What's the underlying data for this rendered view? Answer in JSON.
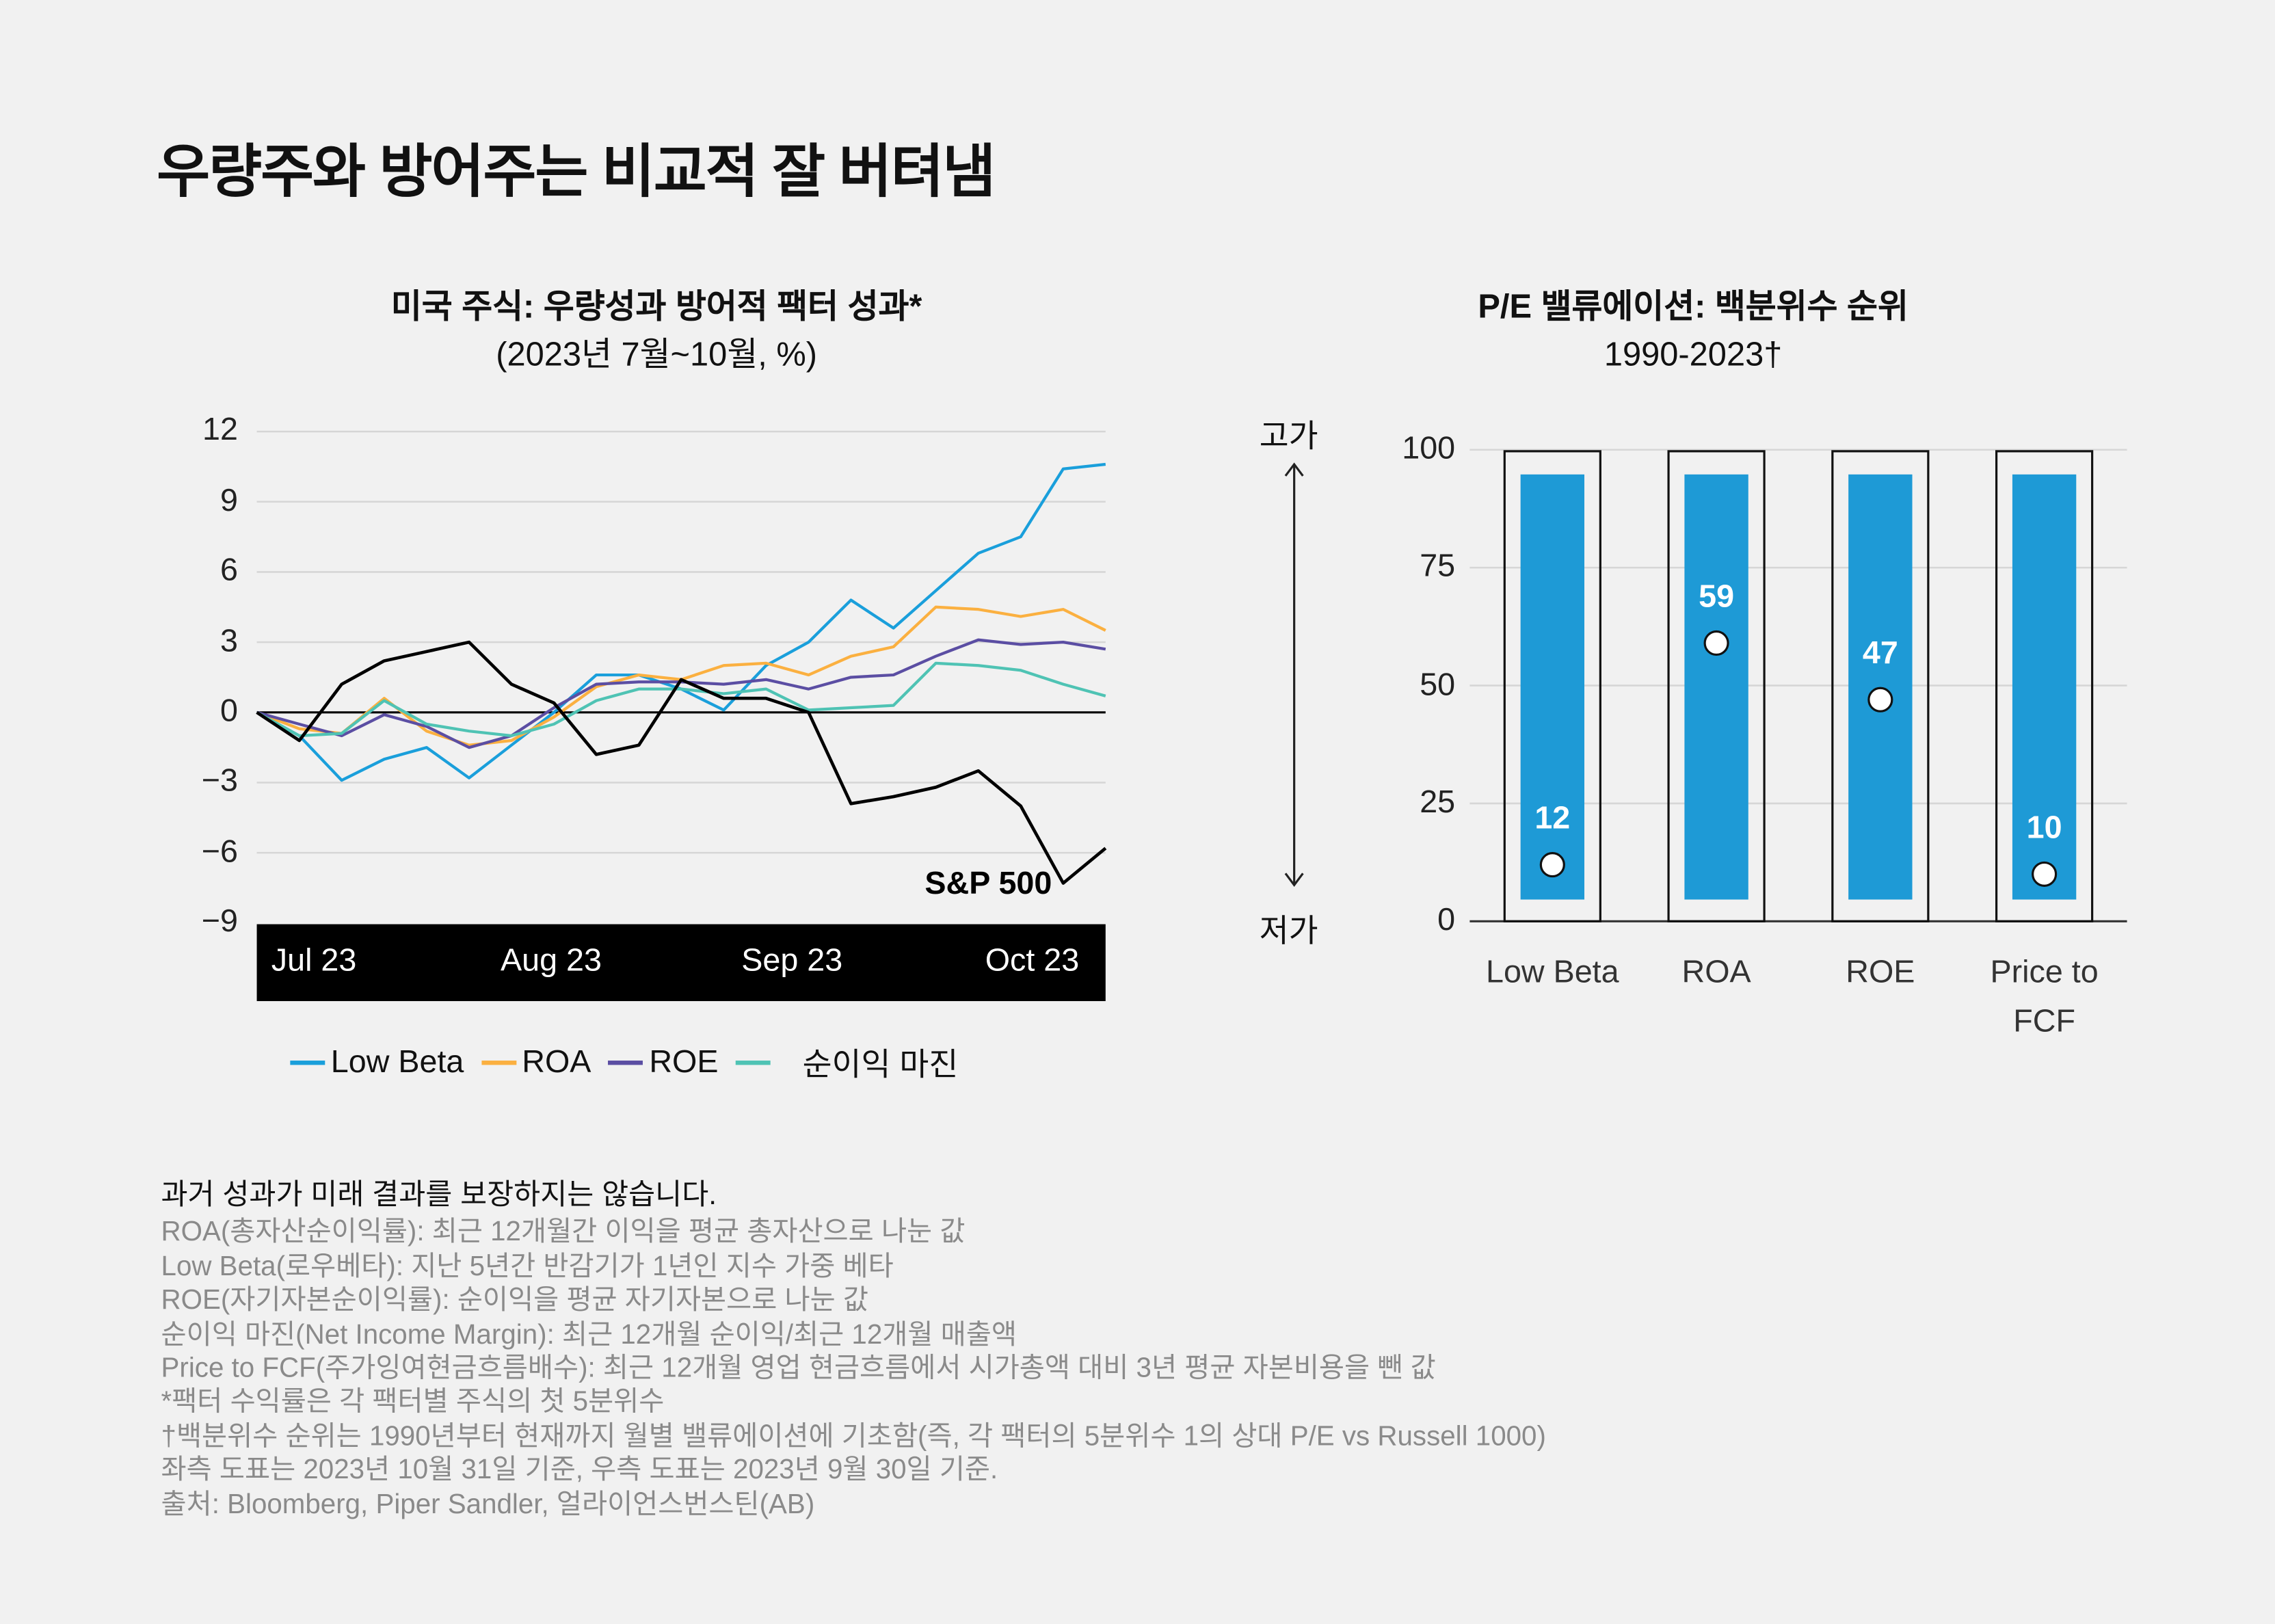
{
  "title": "우량주와 방어주는 비교적 잘 버텨냄",
  "colors": {
    "low_beta": "#1a9fdb",
    "roa": "#fbb040",
    "roe": "#5b4ea3",
    "net_margin": "#4fc3b4",
    "sp500": "#000000",
    "bar": "#1e9ad6"
  },
  "chart_data": [
    {
      "type": "line",
      "title": "미국 주식: 우량성과 방어적 팩터 성과*",
      "subtitle": "(2023년 7월~10월, %)",
      "xlabel": "",
      "ylabel": "",
      "ylim": [
        -9,
        12
      ],
      "yticks": [
        "12",
        "9",
        "6",
        "3",
        "0",
        "−3",
        "−6",
        "−9"
      ],
      "xticks": [
        "Jul 23",
        "Aug 23",
        "Sep 23",
        "Oct 23"
      ],
      "grid": true,
      "legend_placement": "bottom",
      "x": [
        "2023-07-03",
        "2023-07-09",
        "2023-07-15",
        "2023-07-21",
        "2023-07-27",
        "2023-08-02",
        "2023-08-08",
        "2023-08-14",
        "2023-08-20",
        "2023-08-26",
        "2023-09-01",
        "2023-09-07",
        "2023-09-13",
        "2023-09-19",
        "2023-09-25",
        "2023-10-01",
        "2023-10-07",
        "2023-10-13",
        "2023-10-19",
        "2023-10-25",
        "2023-10-31"
      ],
      "series": [
        {
          "name": "Low Beta",
          "key": "low_beta",
          "values": [
            0,
            -1.0,
            -2.9,
            -2.0,
            -1.5,
            -2.8,
            -1.4,
            0,
            1.6,
            1.6,
            1.0,
            0.1,
            2.0,
            3.0,
            4.8,
            3.6,
            5.2,
            6.8,
            7.5,
            10.4,
            10.6
          ]
        },
        {
          "name": "ROA",
          "key": "roa",
          "values": [
            0,
            -0.7,
            -0.9,
            0.6,
            -0.8,
            -1.4,
            -1.2,
            -0.2,
            1.1,
            1.6,
            1.4,
            2.0,
            2.1,
            1.6,
            2.4,
            2.8,
            4.5,
            4.4,
            4.1,
            4.4,
            3.5
          ]
        },
        {
          "name": "ROE",
          "key": "roe",
          "values": [
            0,
            -0.5,
            -1.0,
            -0.1,
            -0.6,
            -1.5,
            -1.0,
            0.2,
            1.2,
            1.3,
            1.3,
            1.2,
            1.4,
            1.0,
            1.5,
            1.6,
            2.4,
            3.1,
            2.9,
            3.0,
            2.7
          ]
        },
        {
          "name": "순이익 마진",
          "key": "net_margin",
          "values": [
            0,
            -1.0,
            -0.9,
            0.5,
            -0.5,
            -0.8,
            -1.0,
            -0.5,
            0.5,
            1.0,
            1.0,
            0.8,
            1.0,
            0.1,
            0.2,
            0.3,
            2.1,
            2.0,
            1.8,
            1.2,
            0.7
          ]
        },
        {
          "name": "S&P 500",
          "key": "sp500",
          "values": [
            0,
            -1.2,
            1.2,
            2.2,
            2.6,
            3.0,
            1.2,
            0.4,
            -1.8,
            -1.4,
            1.4,
            0.6,
            0.6,
            0,
            -3.9,
            -3.6,
            -3.2,
            -2.5,
            -4.0,
            -7.3,
            -5.8
          ]
        }
      ]
    },
    {
      "type": "bar",
      "title": "P/E 밸류에이션: 백분위수 순위",
      "subtitle": "1990-2023†",
      "ylim": [
        0,
        100
      ],
      "yticks": [
        "100",
        "75",
        "50",
        "25",
        "0"
      ],
      "axis_top_label": "고가",
      "axis_bottom_label": "저가",
      "categories": [
        "Low Beta",
        "ROA",
        "ROE",
        "Price to FCF"
      ],
      "values": [
        12,
        59,
        47,
        10
      ]
    }
  ],
  "footnotes": {
    "lead": "과거 성과가 미래 결과를 보장하지는 않습니다.",
    "lines": [
      "ROA(총자산순이익률): 최근 12개월간 이익을 평균 총자산으로 나눈 값",
      "Low Beta(로우베타): 지난 5년간 반감기가 1년인 지수 가중 베타",
      "ROE(자기자본순이익률): 순이익을 평균 자기자본으로 나눈 값",
      "순이익 마진(Net Income Margin): 최근 12개월 순이익/최근 12개월 매출액",
      "Price to FCF(주가잉여현금흐름배수): 최근 12개월 영업 현금흐름에서 시가총액 대비 3년 평균 자본비용을 뺀 값",
      "*팩터 수익률은 각 팩터별 주식의 첫 5분위수",
      "†백분위수 순위는 1990년부터 현재까지 월별 밸류에이션에 기초함(즉, 각 팩터의 5분위수 1의 상대 P/E vs Russell 1000)",
      "좌측 도표는 2023년 10월 31일 기준, 우측 도표는 2023년 9월 30일 기준.",
      "출처: Bloomberg, Piper Sandler, 얼라이언스번스틴(AB)"
    ]
  }
}
